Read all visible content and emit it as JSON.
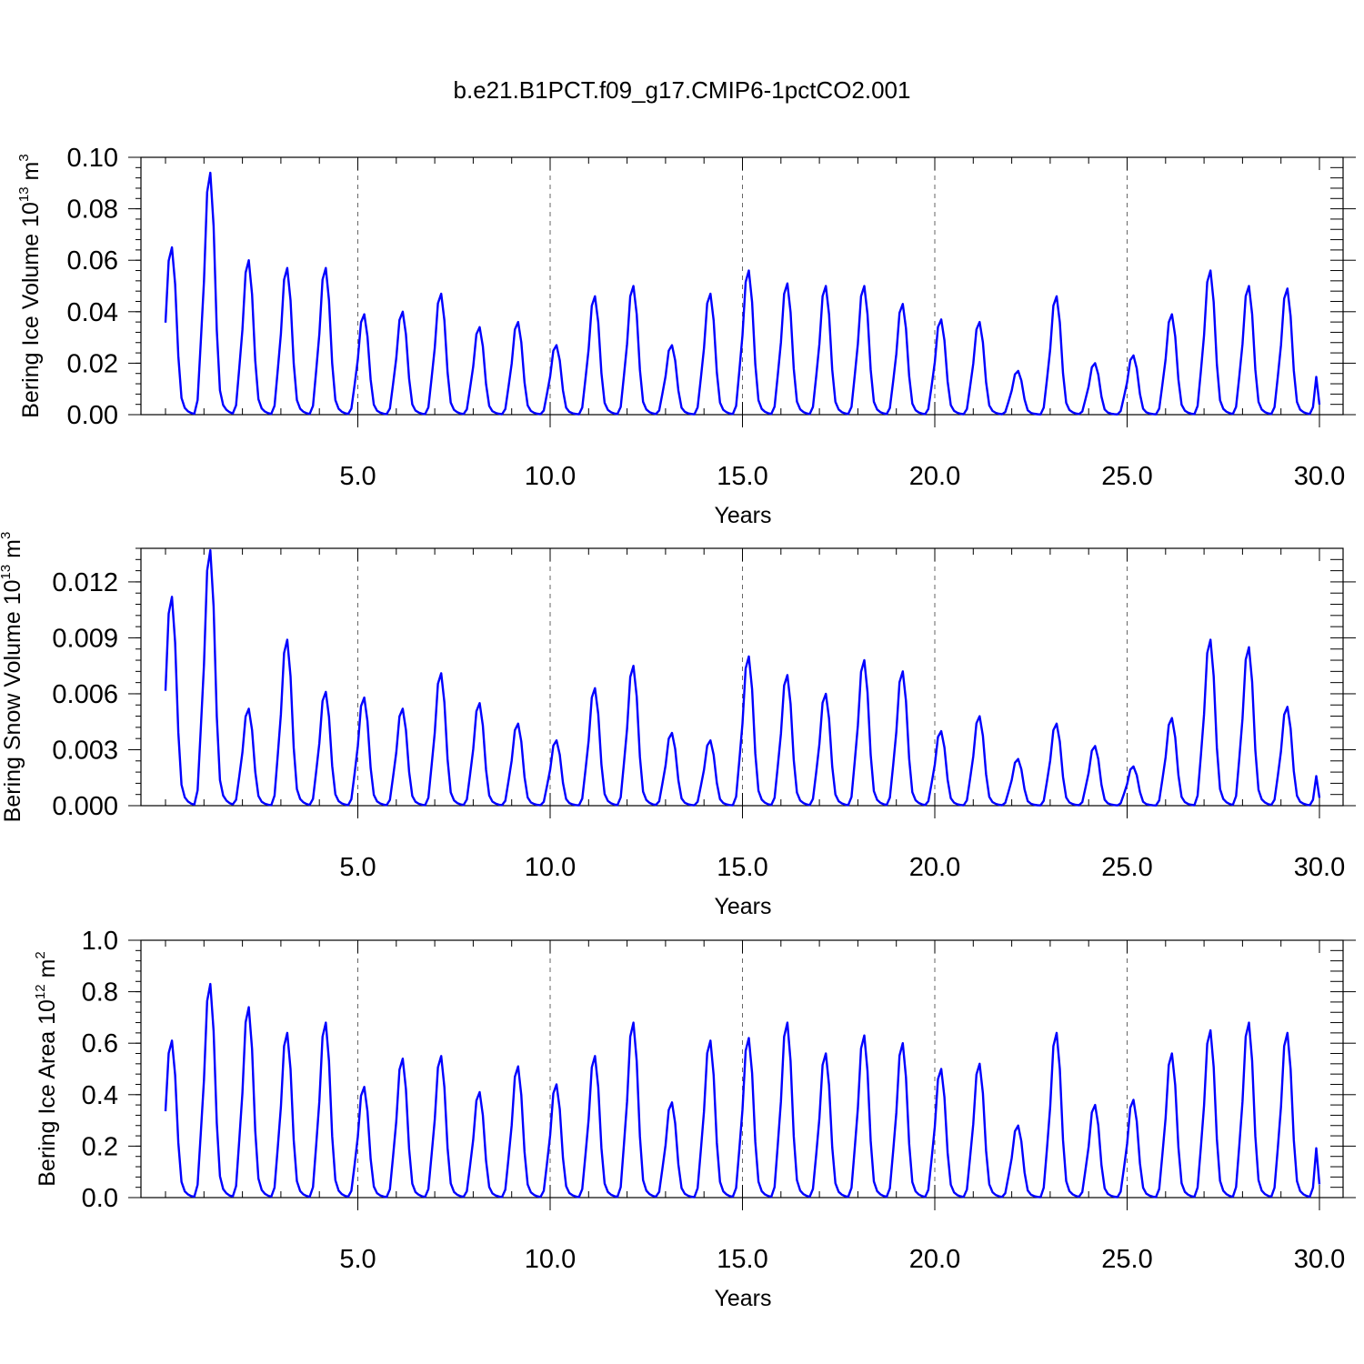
{
  "figure": {
    "title": "b.e21.B1PCT.f09_g17.CMIP6-1pctCO2.001"
  },
  "chart_data": [
    {
      "type": "line",
      "xlabel": "Years",
      "ylabel_main": "Bering Ice Volume 10",
      "ylabel_exp": "13",
      "ylabel_unit": " m",
      "ylabel_unit_exp": "3",
      "xlim": [
        0.0,
        30.0
      ],
      "ylim": [
        0.0,
        0.1
      ],
      "xticks": [
        5,
        10,
        15,
        20,
        25,
        30
      ],
      "xtick_labels": [
        "5.0",
        "10.0",
        "15.0",
        "20.0",
        "25.0",
        "30.0"
      ],
      "yticks": [
        0,
        0.02,
        0.04,
        0.06,
        0.08,
        0.1
      ],
      "ytick_labels": [
        "0.00",
        "0.02",
        "0.04",
        "0.06",
        "0.08",
        "0.10"
      ],
      "grid": "vertical dashed at major x ticks",
      "line_color": "#0000ff",
      "annual_peaks": [
        0.065,
        0.094,
        0.06,
        0.057,
        0.057,
        0.039,
        0.04,
        0.047,
        0.034,
        0.036,
        0.027,
        0.046,
        0.05,
        0.027,
        0.047,
        0.056,
        0.051,
        0.05,
        0.05,
        0.043,
        0.037,
        0.036,
        0.017,
        0.046,
        0.02,
        0.023,
        0.039,
        0.056,
        0.05,
        0.049
      ]
    },
    {
      "type": "line",
      "xlabel": "Years",
      "ylabel_main": "Bering Snow Volume 10",
      "ylabel_exp": "13",
      "ylabel_unit": " m",
      "ylabel_unit_exp": "3",
      "xlim": [
        0.0,
        30.0
      ],
      "ylim": [
        0.0,
        0.0138
      ],
      "xticks": [
        5,
        10,
        15,
        20,
        25,
        30
      ],
      "xtick_labels": [
        "5.0",
        "10.0",
        "15.0",
        "20.0",
        "25.0",
        "30.0"
      ],
      "yticks": [
        0,
        0.003,
        0.006,
        0.009,
        0.012
      ],
      "ytick_labels": [
        "0.000",
        "0.003",
        "0.006",
        "0.009",
        "0.012"
      ],
      "grid": "vertical dashed at major x ticks",
      "line_color": "#0000ff",
      "annual_peaks": [
        0.0112,
        0.0137,
        0.0052,
        0.0089,
        0.0061,
        0.0058,
        0.0052,
        0.0071,
        0.0055,
        0.0044,
        0.0035,
        0.0063,
        0.0075,
        0.0039,
        0.0035,
        0.008,
        0.007,
        0.006,
        0.0078,
        0.0072,
        0.004,
        0.0048,
        0.0025,
        0.0044,
        0.0032,
        0.0021,
        0.0047,
        0.0089,
        0.0085,
        0.0053
      ]
    },
    {
      "type": "line",
      "xlabel": "Years",
      "ylabel_main": "Bering Ice Area 10",
      "ylabel_exp": "12",
      "ylabel_unit": " m",
      "ylabel_unit_exp": "2",
      "xlim": [
        0.0,
        30.0
      ],
      "ylim": [
        0.0,
        1.0
      ],
      "xticks": [
        5,
        10,
        15,
        20,
        25,
        30
      ],
      "xtick_labels": [
        "5.0",
        "10.0",
        "15.0",
        "20.0",
        "25.0",
        "30.0"
      ],
      "yticks": [
        0,
        0.2,
        0.4,
        0.6,
        0.8,
        1.0
      ],
      "ytick_labels": [
        "0.0",
        "0.2",
        "0.4",
        "0.6",
        "0.8",
        "1.0"
      ],
      "grid": "vertical dashed at major x ticks",
      "line_color": "#0000ff",
      "annual_peaks": [
        0.61,
        0.83,
        0.74,
        0.64,
        0.68,
        0.43,
        0.54,
        0.55,
        0.41,
        0.51,
        0.44,
        0.55,
        0.68,
        0.37,
        0.61,
        0.62,
        0.68,
        0.56,
        0.63,
        0.6,
        0.5,
        0.52,
        0.28,
        0.64,
        0.36,
        0.38,
        0.56,
        0.65,
        0.68,
        0.64
      ]
    }
  ]
}
